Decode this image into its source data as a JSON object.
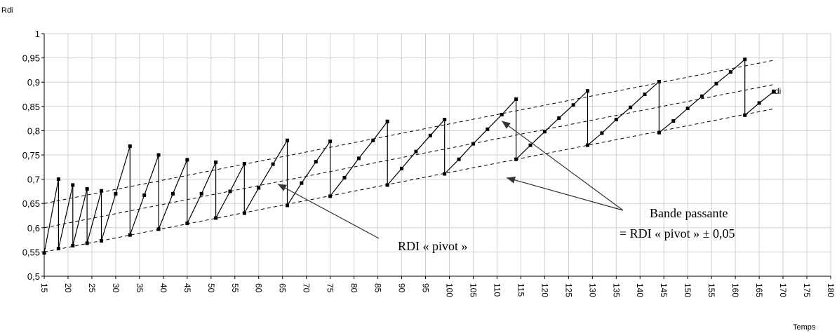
{
  "chart_data": {
    "type": "line",
    "title": "",
    "ylabel": "Rdi",
    "xlabel": "Temps",
    "xlim": [
      15,
      180
    ],
    "ylim": [
      0.5,
      1.0
    ],
    "x_ticks": [
      15,
      20,
      25,
      30,
      35,
      40,
      45,
      50,
      55,
      60,
      65,
      70,
      75,
      80,
      85,
      90,
      95,
      100,
      105,
      110,
      115,
      120,
      125,
      130,
      135,
      140,
      145,
      150,
      155,
      160,
      165,
      170,
      175,
      180
    ],
    "y_ticks": [
      0.5,
      0.55,
      0.6,
      0.65,
      0.7,
      0.75,
      0.8,
      0.85,
      0.9,
      0.95,
      1.0
    ],
    "y_tick_labels": [
      "0,5",
      "0,55",
      "0,6",
      "0,65",
      "0,7",
      "0,75",
      "0,8",
      "0,85",
      "0,9",
      "0,95",
      "1"
    ],
    "grid": true,
    "series": [
      {
        "name": "rdi",
        "points": [
          [
            15,
            0.548
          ],
          [
            18,
            0.7
          ],
          [
            18,
            0.557
          ],
          [
            21,
            0.688
          ],
          [
            21,
            0.563
          ],
          [
            24,
            0.68
          ],
          [
            24,
            0.568
          ],
          [
            27,
            0.676
          ],
          [
            27,
            0.573
          ],
          [
            30,
            0.67
          ],
          [
            33,
            0.768
          ],
          [
            33,
            0.585
          ],
          [
            36,
            0.667
          ],
          [
            39,
            0.75
          ],
          [
            39,
            0.597
          ],
          [
            42,
            0.67
          ],
          [
            45,
            0.74
          ],
          [
            45,
            0.609
          ],
          [
            48,
            0.67
          ],
          [
            51,
            0.735
          ],
          [
            51,
            0.62
          ],
          [
            54,
            0.675
          ],
          [
            57,
            0.732
          ],
          [
            57,
            0.63
          ],
          [
            60,
            0.682
          ],
          [
            63,
            0.731
          ],
          [
            66,
            0.78
          ],
          [
            66,
            0.646
          ],
          [
            69,
            0.692
          ],
          [
            72,
            0.736
          ],
          [
            75,
            0.778
          ],
          [
            75,
            0.665
          ],
          [
            78,
            0.703
          ],
          [
            81,
            0.743
          ],
          [
            84,
            0.78
          ],
          [
            87,
            0.819
          ],
          [
            87,
            0.688
          ],
          [
            90,
            0.722
          ],
          [
            93,
            0.757
          ],
          [
            96,
            0.79
          ],
          [
            99,
            0.823
          ],
          [
            99,
            0.711
          ],
          [
            102,
            0.741
          ],
          [
            105,
            0.773
          ],
          [
            108,
            0.803
          ],
          [
            111,
            0.833
          ],
          [
            114,
            0.865
          ],
          [
            114,
            0.741
          ],
          [
            117,
            0.77
          ],
          [
            120,
            0.798
          ],
          [
            123,
            0.826
          ],
          [
            126,
            0.853
          ],
          [
            129,
            0.882
          ],
          [
            129,
            0.77
          ],
          [
            132,
            0.795
          ],
          [
            135,
            0.823
          ],
          [
            138,
            0.848
          ],
          [
            141,
            0.875
          ],
          [
            144,
            0.901
          ],
          [
            144,
            0.796
          ],
          [
            147,
            0.82
          ],
          [
            150,
            0.846
          ],
          [
            153,
            0.871
          ],
          [
            156,
            0.897
          ],
          [
            159,
            0.921
          ],
          [
            162,
            0.947
          ],
          [
            162,
            0.832
          ],
          [
            165,
            0.857
          ],
          [
            168,
            0.88
          ]
        ]
      }
    ],
    "reference_lines": [
      {
        "style": "dashed",
        "from": [
          15,
          0.65
        ],
        "to": [
          168,
          0.945
        ]
      },
      {
        "style": "dashed",
        "from": [
          15,
          0.6
        ],
        "to": [
          168,
          0.895
        ]
      },
      {
        "style": "dashed",
        "from": [
          15,
          0.55
        ],
        "to": [
          168,
          0.845
        ]
      }
    ],
    "annotations": [
      {
        "text": "RDI « pivot »",
        "arrow_to": [
          64,
          0.69
        ]
      },
      {
        "line1": "Bande passante",
        "line2": "= RDI « pivot » ± 0,05",
        "arrows_to": [
          [
            111,
            0.82
          ],
          [
            112,
            0.703
          ]
        ]
      }
    ],
    "end_label": "rdi"
  }
}
